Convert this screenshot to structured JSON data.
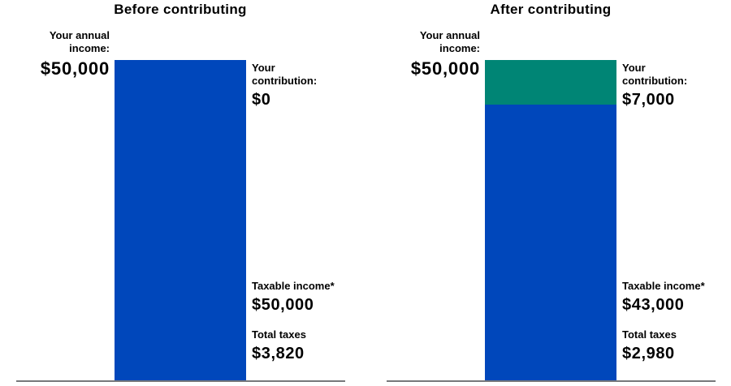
{
  "colors": {
    "bar_blue": "#0047BB",
    "bar_green": "#008575",
    "baseline_gray": "#77787B",
    "text": "#000000"
  },
  "charts": [
    {
      "title": "Before contributing",
      "income_label": "Your annual income:",
      "income_value": "$50,000",
      "income_amount": 50000,
      "contribution_label": "Your contribution:",
      "contribution_value": "$0",
      "contribution_amount": 0,
      "taxable_label": "Taxable income*",
      "taxable_value": "$50,000",
      "taxable_amount": 50000,
      "taxes_label": "Total taxes",
      "taxes_value": "$3,820",
      "taxes_amount": 3820
    },
    {
      "title": "After contributing",
      "income_label": "Your annual income:",
      "income_value": "$50,000",
      "income_amount": 50000,
      "contribution_label": "Your contribution:",
      "contribution_value": "$7,000",
      "contribution_amount": 7000,
      "taxable_label": "Taxable income*",
      "taxable_value": "$43,000",
      "taxable_amount": 43000,
      "taxes_label": "Total taxes",
      "taxes_value": "$2,980",
      "taxes_amount": 2980
    }
  ],
  "chart_data": {
    "type": "bar",
    "stacked": true,
    "categories": [
      "Before contributing",
      "After contributing"
    ],
    "series": [
      {
        "name": "Your contribution",
        "values": [
          0,
          7000
        ],
        "color": "#008575"
      },
      {
        "name": "Taxable income",
        "values": [
          50000,
          43000
        ],
        "color": "#0047BB"
      }
    ],
    "annotations": {
      "annual_income": [
        "$50,000",
        "$50,000"
      ],
      "contribution": [
        "$0",
        "$7,000"
      ],
      "taxable_income": [
        "$50,000",
        "$43,000"
      ],
      "total_taxes": [
        "$3,820",
        "$2,980"
      ]
    },
    "ylim": [
      0,
      50000
    ],
    "grid": false,
    "legend_position": "none"
  }
}
